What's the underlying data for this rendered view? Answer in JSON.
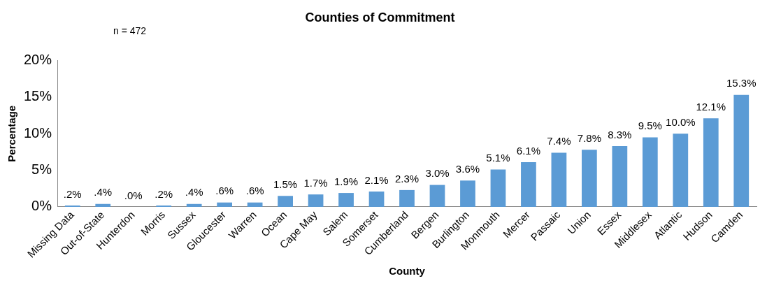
{
  "chart_data": {
    "type": "bar",
    "title": "Counties of Commitment",
    "xlabel": "County",
    "ylabel": "Percentage",
    "annotations": [
      "n = 472"
    ],
    "categories": [
      "Missing Data",
      "Out-of-State",
      "Hunterdon",
      "Morris",
      "Sussex",
      "Gloucester",
      "Warren",
      "Ocean",
      "Cape May",
      "Salem",
      "Somerset",
      "Cumberland",
      "Bergen",
      "Burlington",
      "Monmouth",
      "Mercer",
      "Passaic",
      "Union",
      "Essex",
      "Middlesex",
      "Atlantic",
      "Hudson",
      "Camden"
    ],
    "values": [
      0.2,
      0.4,
      0.0,
      0.2,
      0.4,
      0.6,
      0.6,
      1.5,
      1.7,
      1.9,
      2.1,
      2.3,
      3.0,
      3.6,
      5.1,
      6.1,
      7.4,
      7.8,
      8.3,
      9.5,
      10.0,
      12.1,
      15.3
    ],
    "value_labels": [
      ".2%",
      ".4%",
      ".0%",
      ".2%",
      ".4%",
      ".6%",
      ".6%",
      "1.5%",
      "1.7%",
      "1.9%",
      "2.1%",
      "2.3%",
      "3.0%",
      "3.6%",
      "5.1%",
      "6.1%",
      "7.4%",
      "7.8%",
      "8.3%",
      "9.5%",
      "10.0%",
      "12.1%",
      "15.3%"
    ],
    "color": "#5b9bd5",
    "ylim": [
      0,
      20
    ],
    "yticks": [
      {
        "value": 0,
        "label": "0%"
      },
      {
        "value": 5,
        "label": "5%"
      },
      {
        "value": 10,
        "label": "10%"
      },
      {
        "value": 15,
        "label": "15%"
      },
      {
        "value": 20,
        "label": "20%"
      }
    ],
    "grid": false,
    "legend": false
  }
}
